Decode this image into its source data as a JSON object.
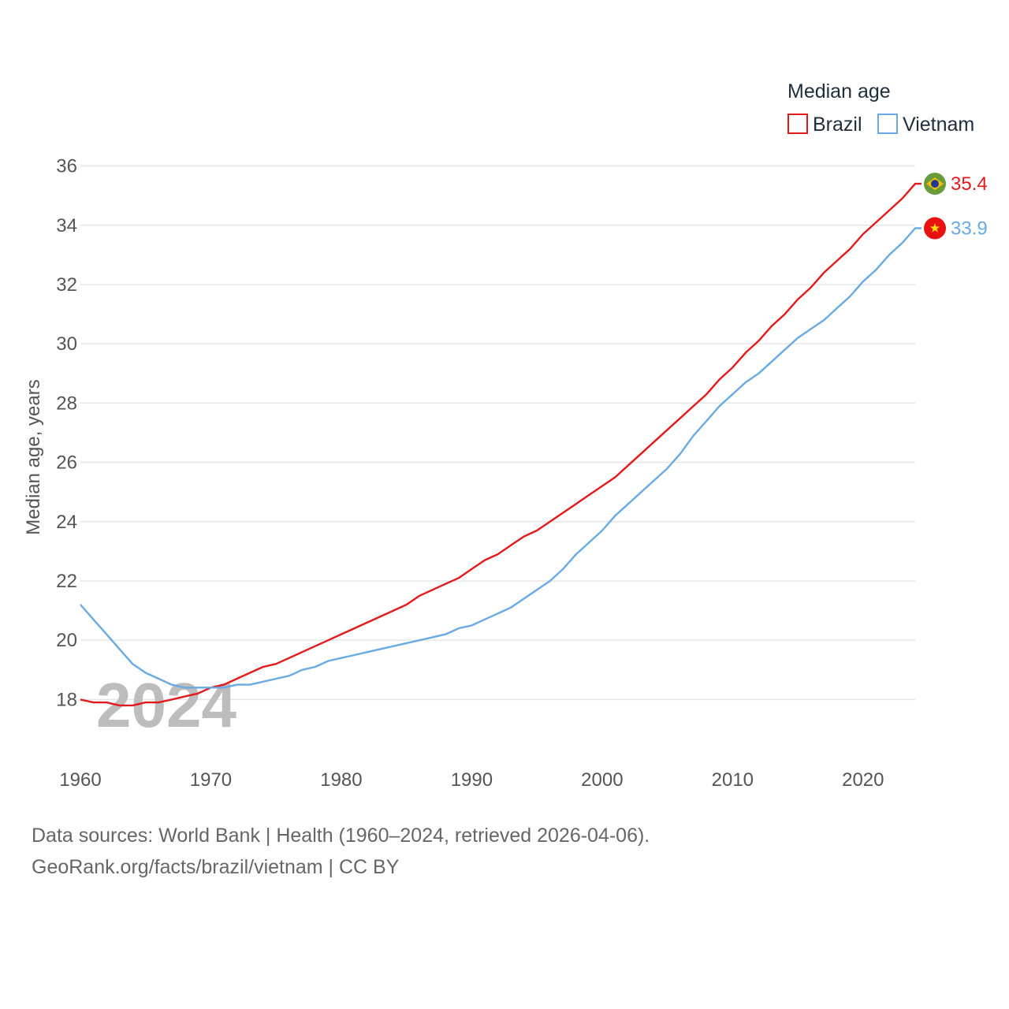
{
  "chart_data": {
    "type": "line",
    "legend_title": "Median age",
    "ylabel": "Median age, years",
    "xlabel": "",
    "ylim": [
      16.6,
      36.6
    ],
    "xlim": [
      1960,
      2024
    ],
    "yticks": [
      18,
      20,
      22,
      24,
      26,
      28,
      30,
      32,
      34,
      36
    ],
    "xticks": [
      1960,
      1970,
      1980,
      1990,
      2000,
      2010,
      2020
    ],
    "year_label": "2024",
    "legend_position": "top-right",
    "x": [
      1960,
      1961,
      1962,
      1963,
      1964,
      1965,
      1966,
      1967,
      1968,
      1969,
      1970,
      1971,
      1972,
      1973,
      1974,
      1975,
      1976,
      1977,
      1978,
      1979,
      1980,
      1981,
      1982,
      1983,
      1984,
      1985,
      1986,
      1987,
      1988,
      1989,
      1990,
      1991,
      1992,
      1993,
      1994,
      1995,
      1996,
      1997,
      1998,
      1999,
      2000,
      2001,
      2002,
      2003,
      2004,
      2005,
      2006,
      2007,
      2008,
      2009,
      2010,
      2011,
      2012,
      2013,
      2014,
      2015,
      2016,
      2017,
      2018,
      2019,
      2020,
      2021,
      2022,
      2023,
      2024
    ],
    "series": [
      {
        "name": "Brazil",
        "color": "#e31a1c",
        "end_label": "35.4",
        "flag": "brazil-flag",
        "values": [
          18.0,
          17.9,
          17.9,
          17.8,
          17.8,
          17.9,
          17.9,
          18.0,
          18.1,
          18.2,
          18.4,
          18.5,
          18.7,
          18.9,
          19.1,
          19.2,
          19.4,
          19.6,
          19.8,
          20.0,
          20.2,
          20.4,
          20.6,
          20.8,
          21.0,
          21.2,
          21.5,
          21.7,
          21.9,
          22.1,
          22.4,
          22.7,
          22.9,
          23.2,
          23.5,
          23.7,
          24.0,
          24.3,
          24.6,
          24.9,
          25.2,
          25.5,
          25.9,
          26.3,
          26.7,
          27.1,
          27.5,
          27.9,
          28.3,
          28.8,
          29.2,
          29.7,
          30.1,
          30.6,
          31.0,
          31.5,
          31.9,
          32.4,
          32.8,
          33.2,
          33.7,
          34.1,
          34.5,
          34.9,
          35.4
        ]
      },
      {
        "name": "Vietnam",
        "color": "#6aaae4",
        "end_label": "33.9",
        "flag": "vietnam-flag",
        "values": [
          21.2,
          20.7,
          20.2,
          19.7,
          19.2,
          18.9,
          18.7,
          18.5,
          18.4,
          18.4,
          18.4,
          18.4,
          18.5,
          18.5,
          18.6,
          18.7,
          18.8,
          19.0,
          19.1,
          19.3,
          19.4,
          19.5,
          19.6,
          19.7,
          19.8,
          19.9,
          20.0,
          20.1,
          20.2,
          20.4,
          20.5,
          20.7,
          20.9,
          21.1,
          21.4,
          21.7,
          22.0,
          22.4,
          22.9,
          23.3,
          23.7,
          24.2,
          24.6,
          25.0,
          25.4,
          25.8,
          26.3,
          26.9,
          27.4,
          27.9,
          28.3,
          28.7,
          29.0,
          29.4,
          29.8,
          30.2,
          30.5,
          30.8,
          31.2,
          31.6,
          32.1,
          32.5,
          33.0,
          33.4,
          33.9
        ]
      }
    ]
  },
  "footer": {
    "line1": "Data sources: World Bank | Health (1960–2024, retrieved 2026-04-06).",
    "line2": "GeoRank.org/facts/brazil/vietnam | CC BY"
  }
}
